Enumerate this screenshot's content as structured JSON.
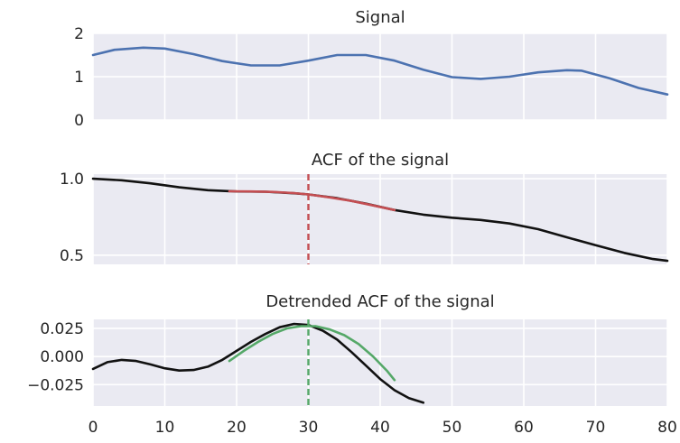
{
  "chart_data": [
    {
      "type": "line",
      "title": "Signal",
      "xlim": [
        0,
        80
      ],
      "ylim": [
        0,
        2
      ],
      "grid": true,
      "xticks": [
        0,
        10,
        20,
        30,
        40,
        50,
        60,
        70,
        80
      ],
      "yticks": [
        "0",
        "1",
        "2"
      ],
      "series": [
        {
          "color": "#4c72b0",
          "x": [
            0,
            3,
            7,
            10,
            14,
            18,
            22,
            26,
            30,
            34,
            38,
            42,
            46,
            50,
            54,
            58,
            62,
            66,
            68,
            72,
            76,
            80
          ],
          "y": [
            1.5,
            1.62,
            1.67,
            1.65,
            1.52,
            1.36,
            1.26,
            1.26,
            1.37,
            1.5,
            1.5,
            1.37,
            1.16,
            0.99,
            0.95,
            1.0,
            1.1,
            1.15,
            1.14,
            0.96,
            0.74,
            0.59
          ]
        }
      ]
    },
    {
      "type": "line",
      "title": "ACF of the signal",
      "xlim": [
        0,
        80
      ],
      "ylim": [
        0.44,
        1.03
      ],
      "grid": true,
      "xticks": [
        0,
        10,
        20,
        30,
        40,
        50,
        60,
        70,
        80
      ],
      "yticks": [
        "0.5",
        "1.0"
      ],
      "vline": {
        "x": 30,
        "color": "#c44e52"
      },
      "series": [
        {
          "color": "#111111",
          "x": [
            0,
            4,
            8,
            12,
            16,
            20,
            24,
            28,
            30,
            34,
            38,
            42,
            46,
            50,
            54,
            58,
            62,
            66,
            70,
            74,
            78,
            80
          ],
          "y": [
            1.0,
            0.99,
            0.97,
            0.944,
            0.925,
            0.917,
            0.915,
            0.905,
            0.897,
            0.873,
            0.837,
            0.795,
            0.765,
            0.745,
            0.73,
            0.707,
            0.67,
            0.617,
            0.565,
            0.515,
            0.475,
            0.463
          ]
        },
        {
          "color": "#c44e52",
          "x": [
            19,
            22,
            25,
            28,
            30,
            33,
            36,
            39,
            42
          ],
          "y": [
            0.918,
            0.917,
            0.914,
            0.906,
            0.897,
            0.878,
            0.855,
            0.825,
            0.795
          ]
        }
      ]
    },
    {
      "type": "line",
      "title": "Detrended ACF of the signal",
      "xlim": [
        0,
        80
      ],
      "ylim": [
        -0.044,
        0.033
      ],
      "grid": true,
      "xticks": [
        0,
        10,
        20,
        30,
        40,
        50,
        60,
        70,
        80
      ],
      "xtick_labels": [
        "0",
        "10",
        "20",
        "30",
        "40",
        "50",
        "60",
        "70",
        "80"
      ],
      "yticks": [
        "0.025",
        "0.000",
        "−0.025"
      ],
      "vline": {
        "x": 30,
        "color": "#55a868"
      },
      "series": [
        {
          "color": "#111111",
          "x": [
            0,
            2,
            4,
            6,
            8,
            10,
            12,
            14,
            16,
            18,
            20,
            22,
            24,
            26,
            28,
            30,
            32,
            34,
            36,
            38,
            40,
            42,
            44,
            46
          ],
          "y": [
            -0.011,
            -0.005,
            -0.003,
            -0.004,
            -0.007,
            -0.0105,
            -0.0125,
            -0.012,
            -0.009,
            -0.003,
            0.005,
            0.013,
            0.02,
            0.026,
            0.029,
            0.028,
            0.023,
            0.015,
            0.004,
            -0.008,
            -0.02,
            -0.03,
            -0.037,
            -0.041
          ]
        },
        {
          "color": "#55a868",
          "x": [
            19,
            21,
            23,
            25,
            27,
            29,
            31,
            33,
            35,
            37,
            39,
            41,
            42
          ],
          "y": [
            -0.004,
            0.005,
            0.013,
            0.02,
            0.025,
            0.027,
            0.027,
            0.024,
            0.019,
            0.011,
            0.0,
            -0.013,
            -0.021
          ]
        }
      ]
    }
  ]
}
